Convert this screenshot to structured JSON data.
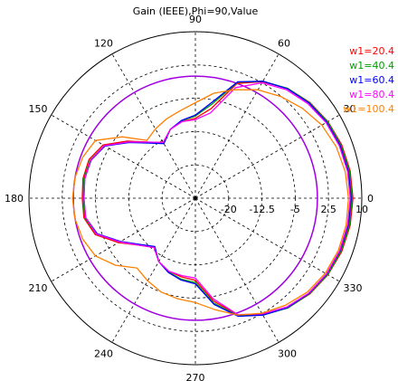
{
  "chart_data": {
    "type": "polar-line",
    "title": "Gain (IEEE),Phi=90,Value",
    "angular_axis": {
      "zero_direction": "right",
      "rotation": "counterclockwise",
      "tick_labels": [
        "0",
        "30",
        "60",
        "90",
        "120",
        "150",
        "180",
        "210",
        "240",
        "270",
        "300",
        "330"
      ]
    },
    "radial_axis": {
      "range": [
        -27.5,
        10
      ],
      "ticks": [
        -20,
        -12.5,
        -5,
        2.5,
        10
      ],
      "tick_labels": [
        "-20",
        "-12.5",
        "-5",
        "2.5",
        "10"
      ],
      "label_angle_deg": 0
    },
    "reference_circle": {
      "value": 0,
      "color": "#a000e0"
    },
    "legend": {
      "position": "top-right"
    },
    "series": [
      {
        "name": "w1=20.4",
        "color": "#ff0000",
        "angles_deg": [
          0,
          10,
          20,
          30,
          40,
          50,
          60,
          70,
          80,
          90,
          100,
          110,
          120,
          130,
          140,
          150,
          160,
          170,
          180,
          190,
          200,
          210,
          220,
          230,
          240,
          250,
          260,
          270,
          280,
          290,
          300,
          310,
          320,
          330,
          340,
          350
        ],
        "gain_db": [
          8.0,
          7.9,
          7.6,
          7.0,
          6.1,
          4.8,
          2.8,
          0.0,
          -7.0,
          -9.5,
          -10.0,
          -11.0,
          -13.0,
          -11.0,
          -7.5,
          -3.5,
          -2.0,
          -1.8,
          -2.0,
          -2.0,
          -3.5,
          -7.5,
          -11.0,
          -13.0,
          -11.0,
          -10.0,
          -9.5,
          -9.0,
          -4.0,
          0.5,
          2.8,
          4.8,
          6.1,
          7.0,
          7.6,
          7.9
        ]
      },
      {
        "name": "w1=40.4",
        "color": "#00a000",
        "angles_deg": [
          0,
          10,
          20,
          30,
          40,
          50,
          60,
          70,
          80,
          90,
          100,
          110,
          120,
          130,
          140,
          150,
          160,
          170,
          180,
          190,
          200,
          210,
          220,
          230,
          240,
          250,
          260,
          270,
          280,
          290,
          300,
          310,
          320,
          330,
          340,
          350
        ],
        "gain_db": [
          7.8,
          7.7,
          7.4,
          6.9,
          6.0,
          4.8,
          2.9,
          0.3,
          -6.0,
          -9.0,
          -9.8,
          -11.0,
          -13.2,
          -11.2,
          -7.8,
          -3.8,
          -2.3,
          -2.0,
          -2.2,
          -2.2,
          -3.8,
          -7.8,
          -11.2,
          -13.2,
          -11.0,
          -9.8,
          -9.0,
          -8.5,
          -3.5,
          0.7,
          2.9,
          4.8,
          6.0,
          6.9,
          7.4,
          7.7
        ]
      },
      {
        "name": "w1=60.4",
        "color": "#0000ff",
        "angles_deg": [
          0,
          10,
          20,
          30,
          40,
          50,
          60,
          70,
          80,
          90,
          100,
          110,
          120,
          130,
          140,
          150,
          160,
          170,
          180,
          190,
          200,
          210,
          220,
          230,
          240,
          250,
          260,
          270,
          280,
          290,
          300,
          310,
          320,
          330,
          340,
          350
        ],
        "gain_db": [
          7.6,
          7.5,
          7.2,
          6.7,
          5.9,
          4.7,
          2.9,
          0.4,
          -5.5,
          -8.8,
          -9.7,
          -11.0,
          -13.3,
          -11.3,
          -8.0,
          -4.0,
          -2.5,
          -2.2,
          -2.4,
          -2.4,
          -4.0,
          -8.0,
          -11.3,
          -13.3,
          -11.0,
          -9.7,
          -8.8,
          -8.2,
          -3.2,
          0.8,
          2.9,
          4.7,
          5.9,
          6.7,
          7.2,
          7.5
        ]
      },
      {
        "name": "w1=80.4",
        "color": "#ff00ff",
        "angles_deg": [
          0,
          10,
          20,
          30,
          40,
          50,
          60,
          70,
          80,
          90,
          100,
          110,
          120,
          130,
          140,
          150,
          160,
          170,
          180,
          190,
          200,
          210,
          220,
          230,
          240,
          250,
          260,
          270,
          280,
          290,
          300,
          310,
          320,
          330,
          340,
          350
        ],
        "gain_db": [
          7.4,
          7.3,
          7.0,
          6.5,
          5.6,
          4.4,
          2.5,
          -1.0,
          -8.0,
          -9.8,
          -10.0,
          -11.0,
          -13.0,
          -11.0,
          -7.8,
          -3.8,
          -2.4,
          -2.2,
          -2.4,
          -2.4,
          -3.8,
          -7.8,
          -11.0,
          -13.0,
          -11.0,
          -10.0,
          -9.8,
          -9.5,
          -4.5,
          0.4,
          2.6,
          4.5,
          5.8,
          6.6,
          7.1,
          7.3
        ]
      },
      {
        "name": "w1=100.4",
        "color": "#ff8000",
        "angles_deg": [
          0,
          10,
          20,
          30,
          40,
          50,
          60,
          70,
          80,
          90,
          100,
          110,
          120,
          130,
          140,
          150,
          160,
          170,
          180,
          190,
          200,
          210,
          220,
          230,
          240,
          250,
          260,
          270,
          280,
          290,
          300,
          310,
          320,
          330,
          340,
          350
        ],
        "gain_db": [
          7.0,
          6.8,
          6.3,
          5.4,
          4.0,
          2.4,
          0.7,
          -1.5,
          -3.5,
          -6.0,
          -7.5,
          -8.5,
          -9.5,
          -10.5,
          -6.0,
          -1.5,
          -0.5,
          0.0,
          0.2,
          0.0,
          -0.5,
          -1.5,
          -4.0,
          -7.0,
          -6.0,
          -5.0,
          -4.5,
          -4.0,
          -2.0,
          0.5,
          2.4,
          4.0,
          5.4,
          6.3,
          6.8,
          7.0
        ]
      }
    ]
  }
}
